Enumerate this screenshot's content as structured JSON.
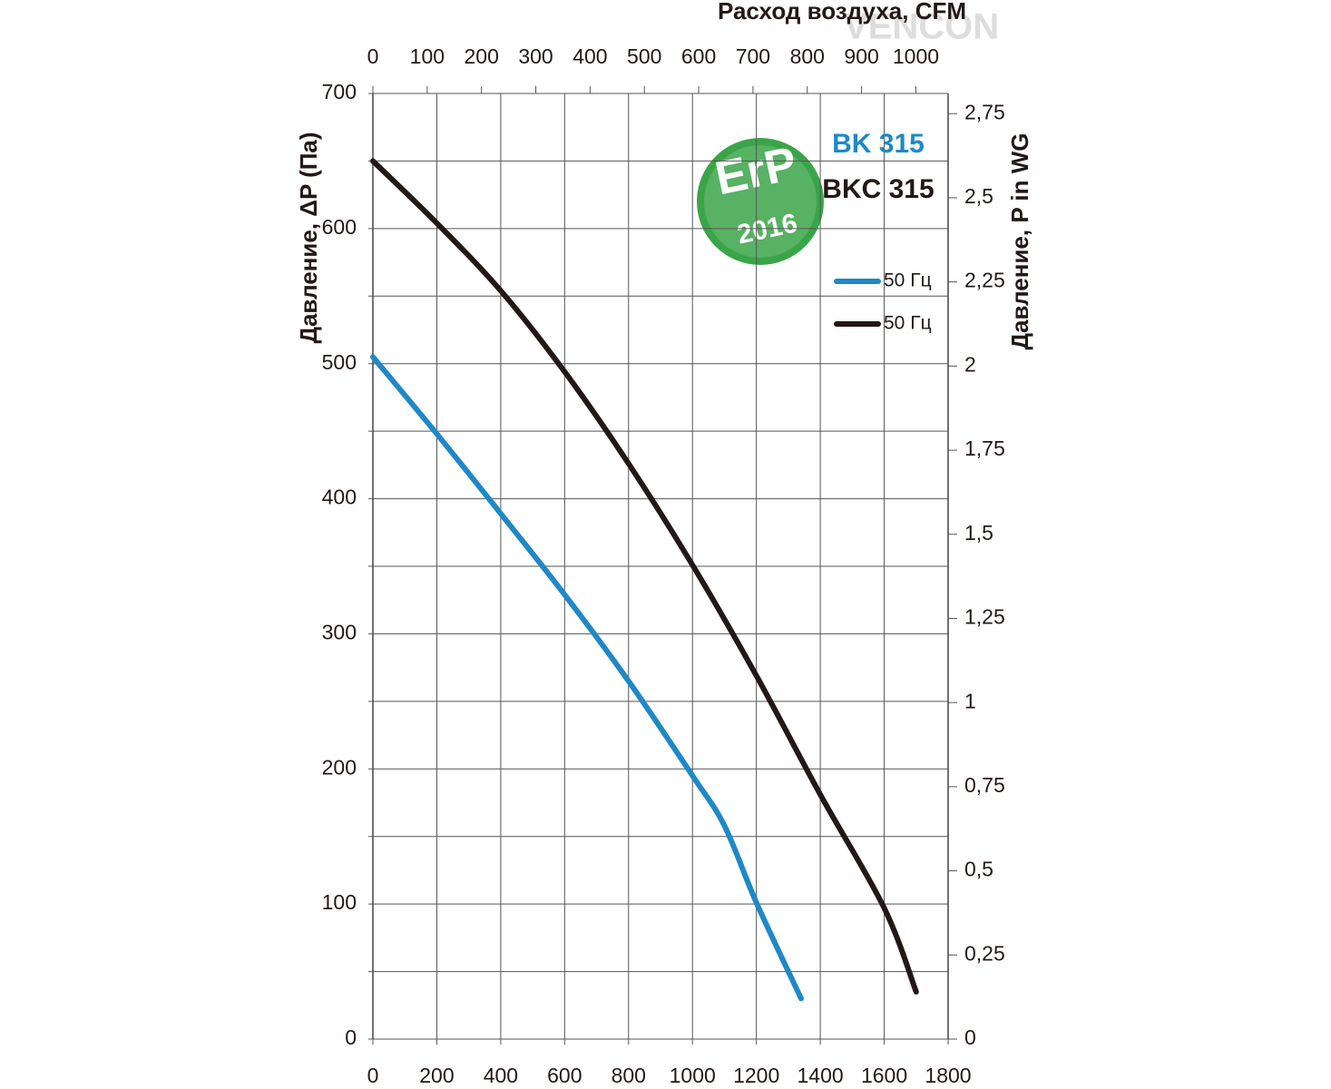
{
  "chart_data": {
    "type": "line",
    "x2_label": "Расход воздуха, CFM",
    "y_label": "Давление, ΔP (Па)",
    "y2_label": "Давление,  P in WG",
    "watermark": "VENCON",
    "badge": {
      "text": "ErP",
      "year": "2016"
    },
    "models": [
      {
        "name": "BK 315",
        "color": "#1f88c7"
      },
      {
        "name": "BKC 315",
        "color": "#231815"
      }
    ],
    "xlim": [
      0,
      1800
    ],
    "xticks": [
      0,
      200,
      400,
      600,
      800,
      1000,
      1200,
      1400,
      1600,
      1800
    ],
    "x2lim": [
      0,
      1059.4
    ],
    "x2ticks": [
      0,
      100,
      200,
      300,
      400,
      500,
      600,
      700,
      800,
      900,
      1000
    ],
    "ylim": [
      0,
      700
    ],
    "yticks": [
      0,
      100,
      200,
      300,
      400,
      500,
      600,
      700
    ],
    "ygrid_minor": [
      50,
      150,
      250,
      350,
      450,
      550,
      650
    ],
    "y2lim": [
      0,
      2.81
    ],
    "y2ticks": [
      0,
      {
        "value": 0.25,
        "label": "0,25"
      },
      {
        "value": 0.5,
        "label": "0,5"
      },
      {
        "value": 0.75,
        "label": "0,75"
      },
      1,
      {
        "value": 1.25,
        "label": "1,25"
      },
      {
        "value": 1.5,
        "label": "1,5"
      },
      {
        "value": 1.75,
        "label": "1,75"
      },
      2,
      {
        "value": 2.25,
        "label": "2,25"
      },
      {
        "value": 2.5,
        "label": "2,5"
      },
      {
        "value": 2.75,
        "label": "2,75"
      }
    ],
    "grid": true,
    "series": [
      {
        "name": "50 Гц",
        "color": "#1f88c7",
        "x": [
          0,
          200,
          400,
          600,
          800,
          1000,
          1100,
          1200,
          1340
        ],
        "values": [
          505,
          448,
          389,
          329,
          265,
          195,
          158,
          101,
          30
        ]
      },
      {
        "name": "50 Гц",
        "color": "#231815",
        "x": [
          0,
          200,
          400,
          600,
          800,
          1000,
          1200,
          1400,
          1600,
          1700
        ],
        "values": [
          650,
          604,
          554,
          494,
          426,
          351,
          269,
          181,
          97,
          35
        ]
      }
    ]
  }
}
